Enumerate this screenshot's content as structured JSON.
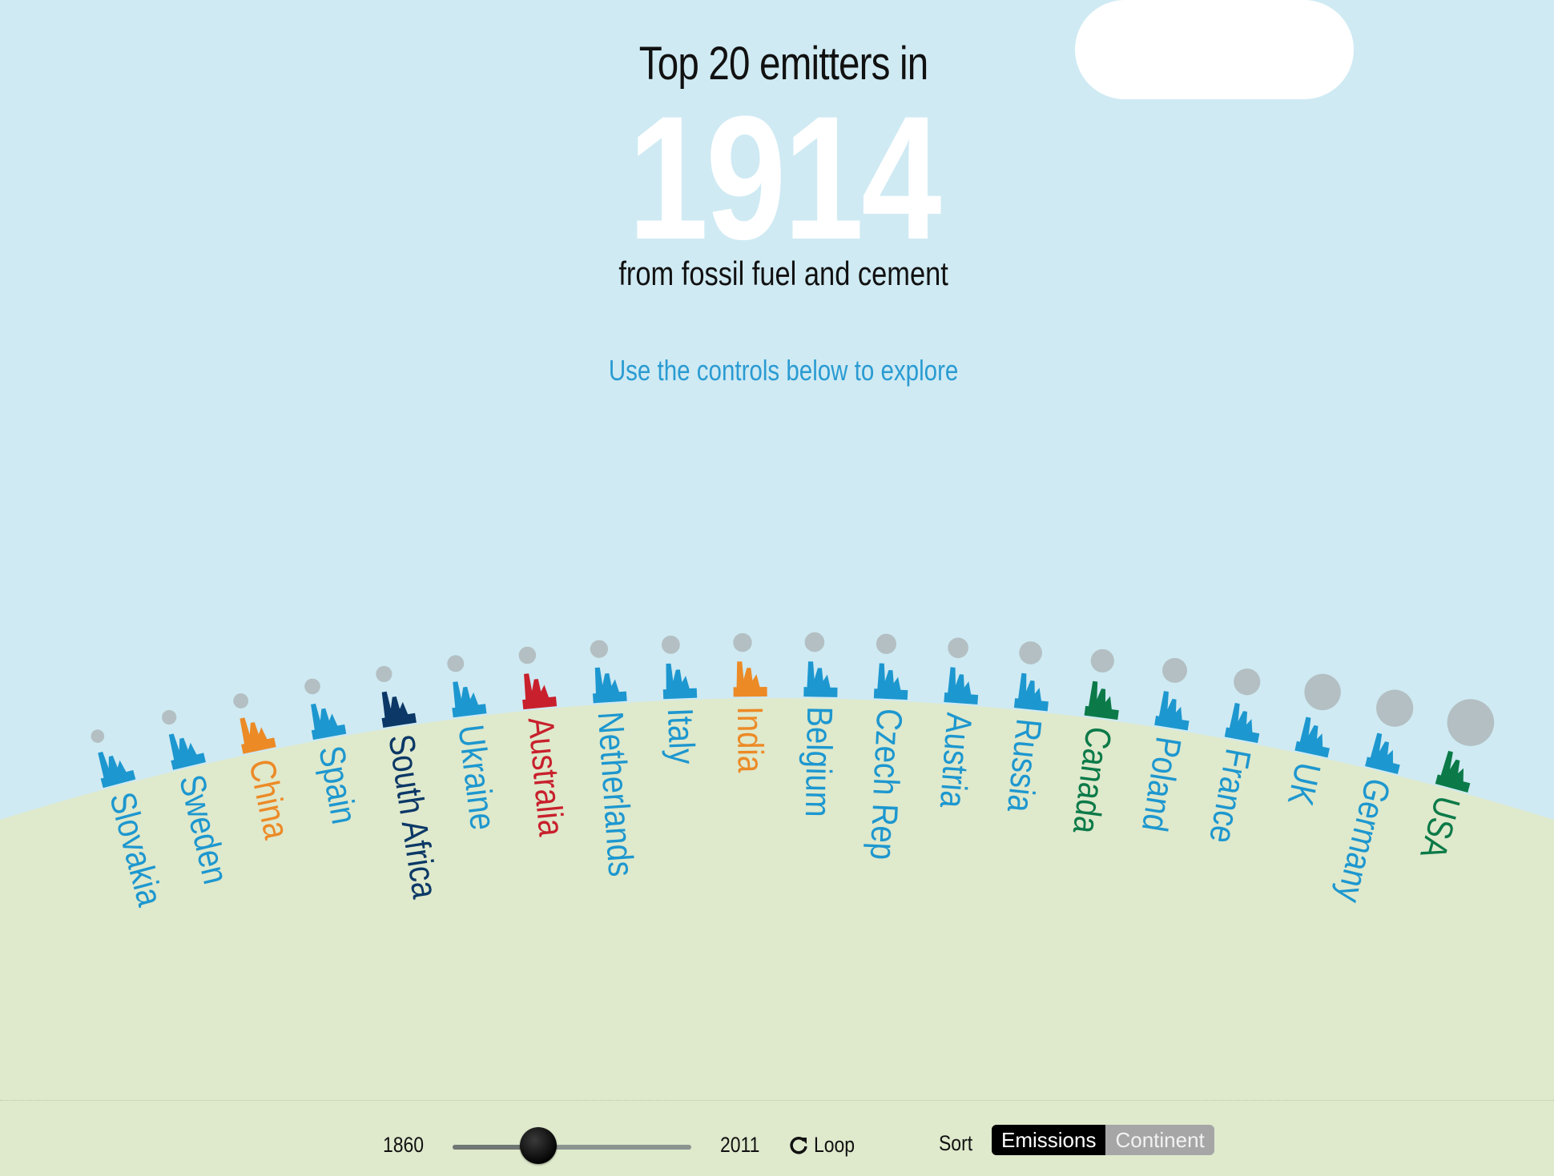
{
  "header": {
    "title_top": "Top 20 emitters in",
    "year": "1914",
    "subtitle": "from fossil fuel and cement",
    "hint": "Use the controls below to explore"
  },
  "colors": {
    "sky": "#cfeaf3",
    "ground": "#dfe9cc",
    "Europe": "#1d97cf",
    "Asia": "#ec8a26",
    "Africa": "#0b3866",
    "Oceania": "#c8202c",
    "North America": "#0b7a48",
    "smoke": "#b3bfc2",
    "cloud": "#ffffff"
  },
  "countries": [
    {
      "name": "Slovakia",
      "continent": "Europe",
      "smoke": 1
    },
    {
      "name": "Sweden",
      "continent": "Europe",
      "smoke": 1.2
    },
    {
      "name": "China",
      "continent": "Asia",
      "smoke": 1.3
    },
    {
      "name": "Spain",
      "continent": "Europe",
      "smoke": 1.4
    },
    {
      "name": "South Africa",
      "continent": "Africa",
      "smoke": 1.5
    },
    {
      "name": "Ukraine",
      "continent": "Europe",
      "smoke": 1.6
    },
    {
      "name": "Australia",
      "continent": "Oceania",
      "smoke": 1.7
    },
    {
      "name": "Netherlands",
      "continent": "Europe",
      "smoke": 1.8
    },
    {
      "name": "Italy",
      "continent": "Europe",
      "smoke": 1.9
    },
    {
      "name": "India",
      "continent": "Asia",
      "smoke": 2.0
    },
    {
      "name": "Belgium",
      "continent": "Europe",
      "smoke": 2.2
    },
    {
      "name": "Czech Rep",
      "continent": "Europe",
      "smoke": 2.3
    },
    {
      "name": "Austria",
      "continent": "Europe",
      "smoke": 2.4
    },
    {
      "name": "Russia",
      "continent": "Europe",
      "smoke": 3.0
    },
    {
      "name": "Canada",
      "continent": "North America",
      "smoke": 3.1
    },
    {
      "name": "Poland",
      "continent": "Europe",
      "smoke": 3.5
    },
    {
      "name": "France",
      "continent": "Europe",
      "smoke": 4.0
    },
    {
      "name": "UK",
      "continent": "Europe",
      "smoke": 7.5
    },
    {
      "name": "Germany",
      "continent": "Europe",
      "smoke": 7.8
    },
    {
      "name": "USA",
      "continent": "North America",
      "smoke": 12.5
    }
  ],
  "controls": {
    "year_min": "1860",
    "year_max": "2011",
    "current_year": 1914,
    "loop_label": "Loop",
    "loop_icon": "refresh-icon",
    "sort_label": "Sort",
    "sort_options": [
      "Emissions",
      "Continent"
    ],
    "sort_selected": "Emissions"
  }
}
